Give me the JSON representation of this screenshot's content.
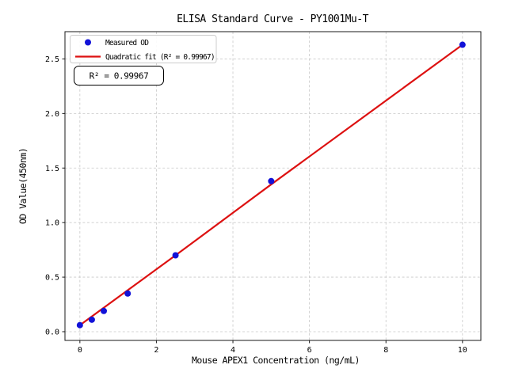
{
  "figure": {
    "background": "#ffffff"
  },
  "chart_data": {
    "type": "scatter",
    "title": "ELISA Standard Curve - PY1001Mu-T",
    "xlabel": "Mouse APEX1 Concentration (ng/mL)",
    "ylabel": "OD Value(450nm)",
    "xlim": [
      -0.39,
      10.48
    ],
    "ylim": [
      -0.08,
      2.75
    ],
    "x_ticks": {
      "values": [
        0,
        2,
        4,
        6,
        8,
        10
      ],
      "labels": [
        "0",
        "2",
        "4",
        "6",
        "8",
        "10"
      ]
    },
    "y_ticks": {
      "values": [
        0,
        0.5,
        1.0,
        1.5,
        2.0,
        2.5
      ],
      "labels": [
        "0.0",
        "0.5",
        "1.0",
        "1.5",
        "2.0",
        "2.5"
      ]
    },
    "grid": {
      "visible": true,
      "style": "dashed",
      "color": "#c9c9c9"
    },
    "series": [
      {
        "name": "Measured OD",
        "type": "scatter",
        "marker": "circle",
        "color": "#1212d8",
        "x": [
          0,
          0.3125,
          0.625,
          1.25,
          2.5,
          5,
          10
        ],
        "y": [
          0.06,
          0.11,
          0.19,
          0.35,
          0.7,
          1.38,
          2.63
        ]
      },
      {
        "name": "Quadratic fit (R² = 0.99967)",
        "type": "line",
        "color": "#dd1111",
        "x": [
          0,
          2.5,
          5,
          7.5,
          10
        ],
        "y": [
          0.06,
          0.7,
          1.35,
          1.99,
          2.63
        ]
      }
    ],
    "legend": {
      "position": "upper left",
      "items": [
        "Measured OD",
        "Quadratic fit (R² = 0.99967)"
      ]
    },
    "annotations": [
      {
        "text": "R² = 0.99967"
      }
    ],
    "r_squared": 0.99967
  }
}
